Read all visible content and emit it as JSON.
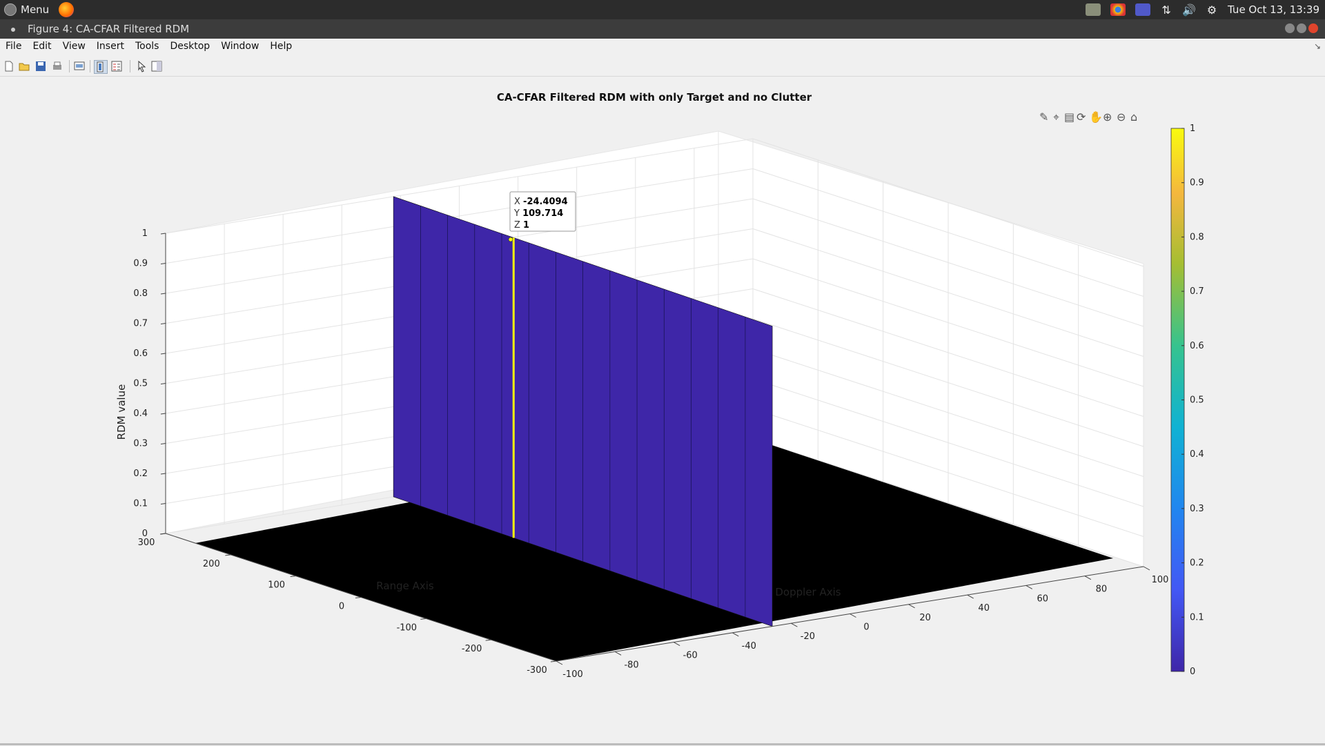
{
  "taskbar": {
    "menu_label": "Menu",
    "clock": "Tue Oct 13, 13:39"
  },
  "window": {
    "title": "Figure 4: CA-CFAR Filtered RDM"
  },
  "menubar": {
    "items": [
      "File",
      "Edit",
      "View",
      "Insert",
      "Tools",
      "Desktop",
      "Window",
      "Help"
    ]
  },
  "axes_toolbar": {
    "icons": [
      "brush-icon",
      "datatip-icon",
      "data-cursor-icon",
      "rotate-icon",
      "pan-icon",
      "zoom-in-icon",
      "zoom-out-icon",
      "home-icon"
    ]
  },
  "chart_data": {
    "type": "surface",
    "title": "CA-CFAR Filtered RDM with only Target and no Clutter",
    "xlabel": "Doppler Axis",
    "ylabel": "Range Axis",
    "zlabel": "RDM value",
    "xlim": [
      -100,
      100
    ],
    "ylim": [
      -300,
      300
    ],
    "zlim": [
      0,
      1
    ],
    "x_ticks": [
      "-100",
      "-80",
      "-60",
      "-40",
      "-20",
      "0",
      "20",
      "40",
      "60",
      "80",
      "100"
    ],
    "y_ticks": [
      "-300",
      "-200",
      "-100",
      "0",
      "100",
      "200",
      "300"
    ],
    "z_ticks": [
      "0",
      "0.1",
      "0.2",
      "0.3",
      "0.4",
      "0.5",
      "0.6",
      "0.7",
      "0.8",
      "0.9",
      "1"
    ],
    "target": {
      "x": -24.4094,
      "y_range": [
        -300,
        300
      ],
      "z": 1
    },
    "colormap": "parula",
    "colorbar": {
      "ticks": [
        "0",
        "0.1",
        "0.2",
        "0.3",
        "0.4",
        "0.5",
        "0.6",
        "0.7",
        "0.8",
        "0.9",
        "1"
      ],
      "range": [
        0,
        1
      ]
    },
    "datatip": {
      "x_label": "X",
      "x_value": "-24.4094",
      "y_label": "Y",
      "y_value": "109.714",
      "z_label": "Z",
      "z_value": "1"
    }
  }
}
